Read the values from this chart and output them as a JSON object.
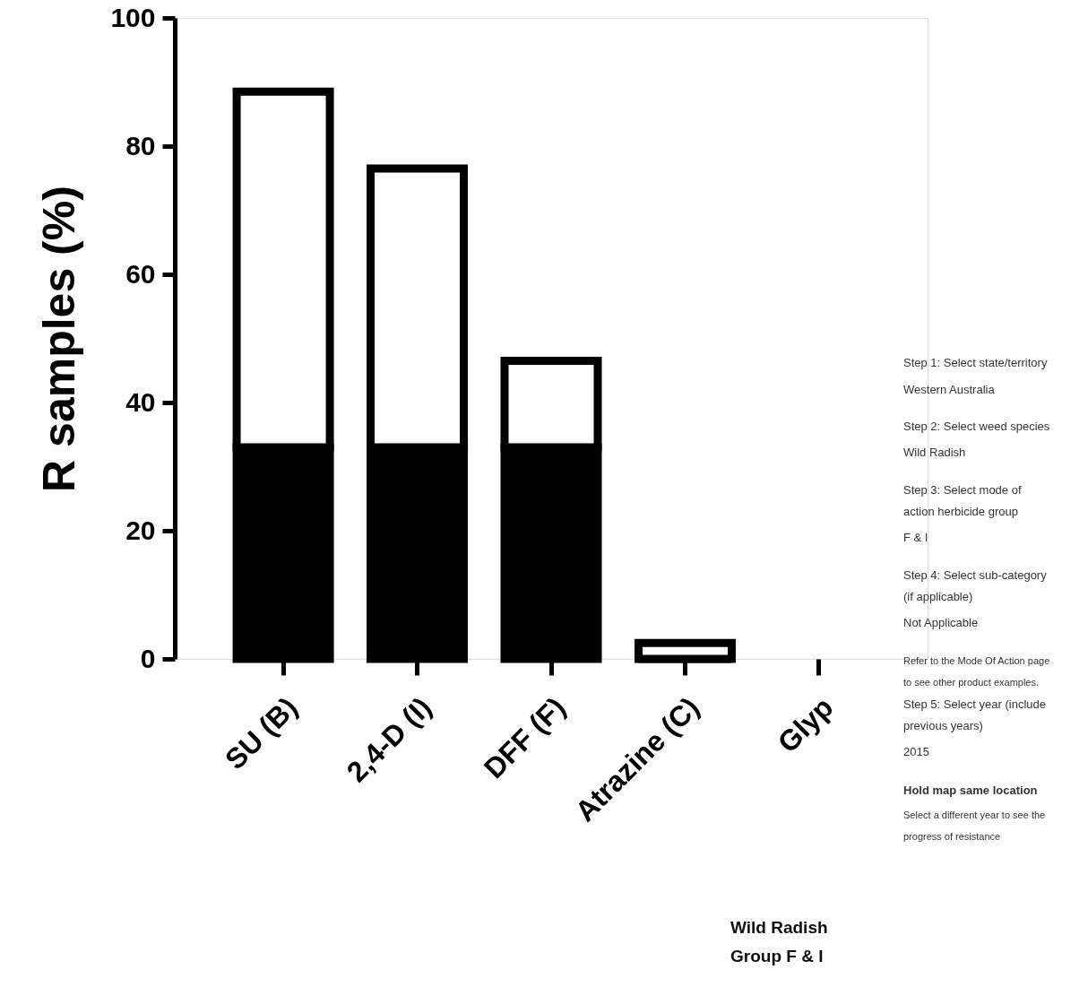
{
  "chart_data": {
    "type": "bar",
    "stacked": true,
    "ylabel": "R samples (%)",
    "categories": [
      "SU (B)",
      "2,4-D (I)",
      "DFF (F)",
      "Atrazine (C)",
      "Glyp"
    ],
    "series": [
      {
        "color": "#000000",
        "values": [
          33,
          33,
          33,
          0,
          null
        ]
      },
      {
        "color": "#ffffff",
        "values": [
          55.5,
          43.5,
          13.5,
          2.5,
          null
        ]
      }
    ],
    "ylim": [
      0,
      100
    ],
    "yticks": [
      0,
      20,
      40,
      60,
      80,
      100
    ],
    "grid": false,
    "annotations": [
      "Step 1: Select state/territory",
      "Western Australia",
      "Step 2: Select weed species",
      "Wild Radish",
      "Step 3: Select mode of",
      "action herbicide group",
      "F & I",
      "Step 4: Select sub-category",
      "(if applicable)",
      "Not Applicable",
      "Refer to the Mode Of Action page",
      "to see other product examples.",
      "Step 5: Select year (include",
      "previous years)",
      "2015",
      "Hold map same location",
      "Select a different year to see the",
      "progress of resistance",
      "Wild Radish",
      "Group F & I"
    ]
  }
}
